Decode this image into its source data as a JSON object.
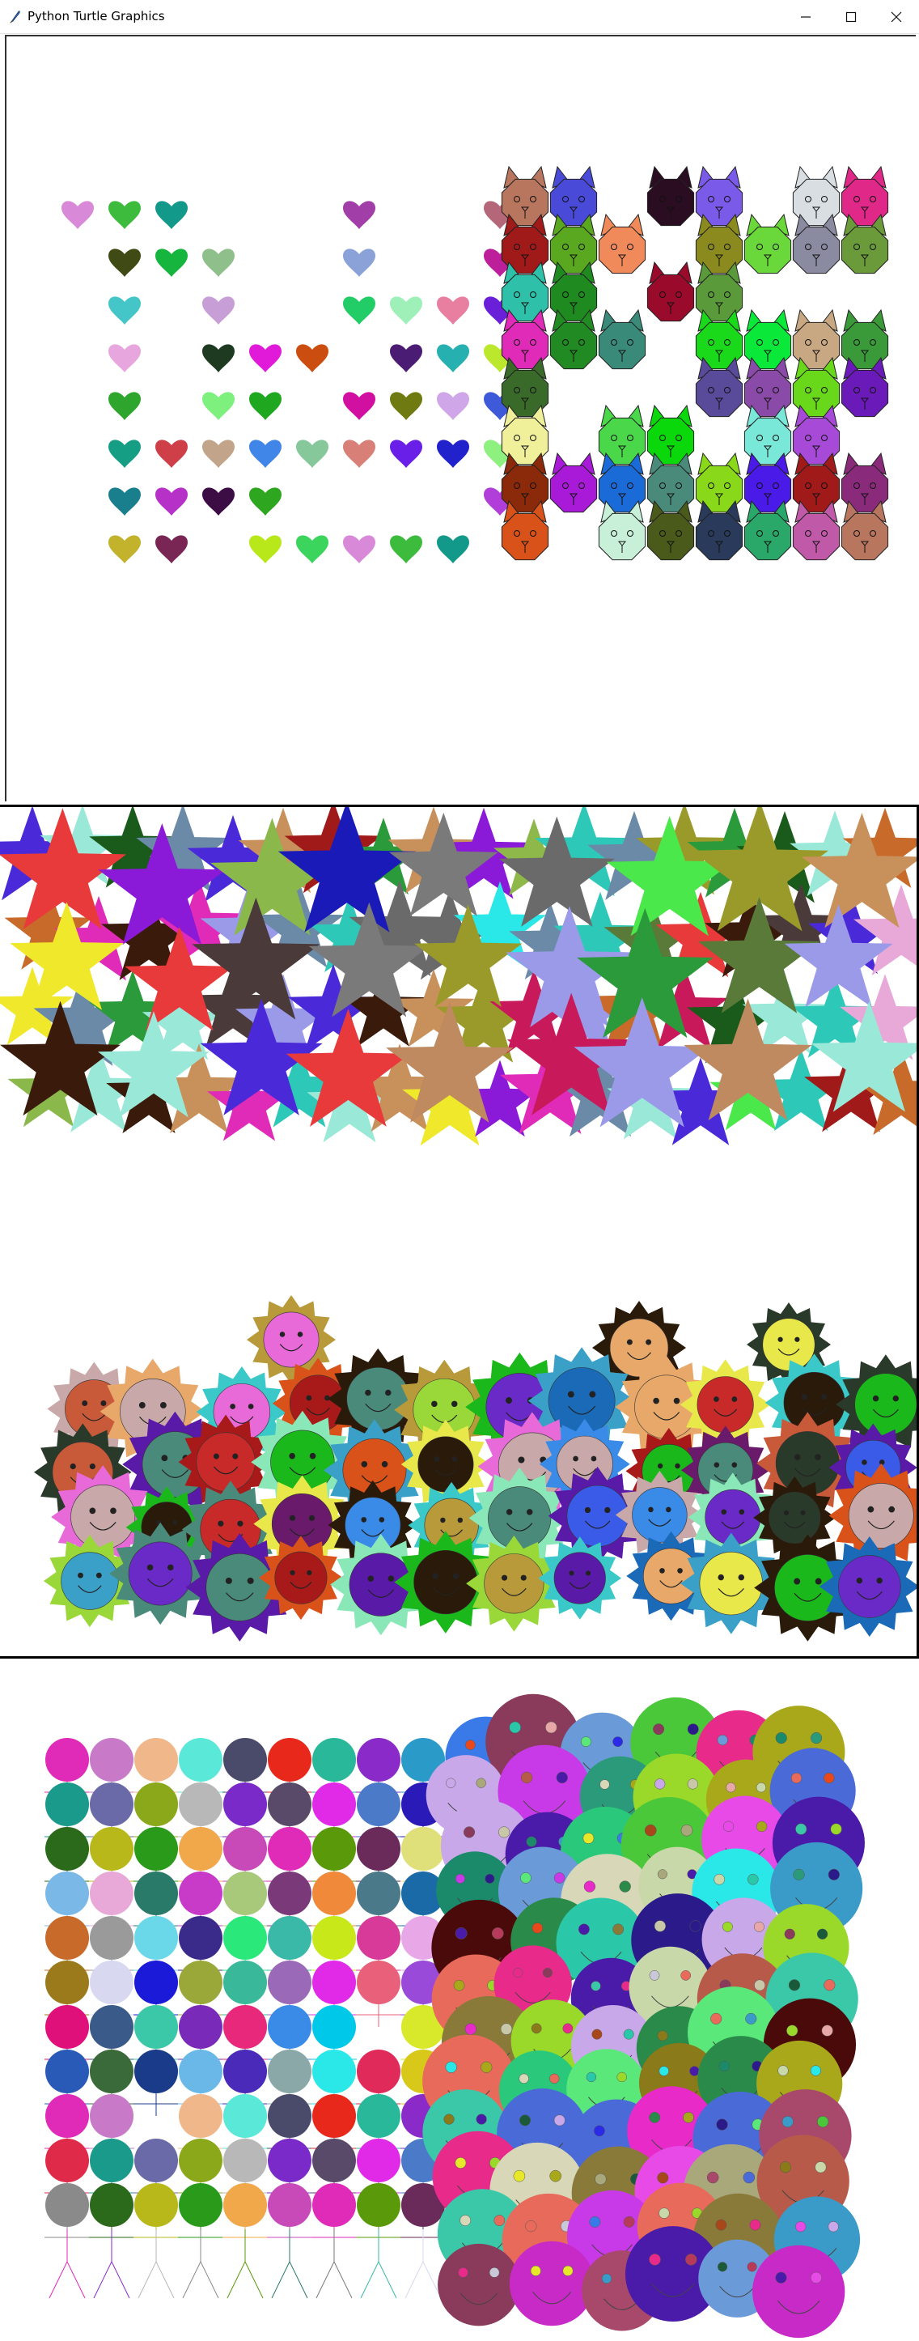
{
  "window": {
    "title": "Python Turtle Graphics",
    "controls": [
      "minimize",
      "maximize",
      "close"
    ]
  },
  "colors": {
    "outline": "#000000",
    "hearts": [
      "#d88ad8",
      "#3dbb3d",
      "#12998a",
      "#a23ea8",
      "#b5677a",
      "#3f4a14",
      "#16b53d",
      "#8fbf8a",
      "#8aa2d8",
      "#bd1f9a",
      "#44c6c8",
      "#c89ed6",
      "#22cc66",
      "#9ef0b8",
      "#e87fa0",
      "#6a1fd8",
      "#e8a6df",
      "#1e3a20",
      "#e01ad8",
      "#cc4d10",
      "#4a1c73",
      "#26b0b0",
      "#bbe82c",
      "#2ea62e",
      "#7ef07e",
      "#1fa81f",
      "#d10fa0",
      "#6f7a10",
      "#cfa6e8",
      "#3f5ad8",
      "#169e85",
      "#cf3f48",
      "#c2a48a",
      "#3f86e8",
      "#86c89a",
      "#d88078",
      "#6a1fe8",
      "#2222cc",
      "#8ef07e",
      "#1a7f8c",
      "#b531c8",
      "#3c0d44",
      "#2ea61f",
      "#b13ed8",
      "#c2b22c",
      "#7a2655",
      "#b8e81a",
      "#3bd45c"
    ],
    "cats": [
      "#b8765f",
      "#4a4ad8",
      "#2a0d20",
      "#7a5ae8",
      "#d8dee2",
      "#e02888",
      "#a01a1a",
      "#5aa81f",
      "#f08a5a",
      "#8a8a1f",
      "#6ad83a",
      "#8a8aa0",
      "#6a9a3a",
      "#2ec0a8",
      "#1f8a1f",
      "#9a0a2a",
      "#5a9a3a",
      "#e02ab8",
      "#228a22",
      "#3a8a7a",
      "#1ad81a",
      "#0ae83a",
      "#c8a882",
      "#3a9a3a",
      "#3a6a2a",
      "#5a4a9a",
      "#8a4aa8",
      "#6ad81a",
      "#6a1ab8",
      "#f0f09a",
      "#4ad84a",
      "#0ad80a",
      "#7ae8d8",
      "#a84ad8",
      "#8a2a0a",
      "#a81ad8",
      "#1a6ad8",
      "#4a8a7a",
      "#8ad81a",
      "#4a1ae8",
      "#a01a1a",
      "#8a2a7a",
      "#d8521a",
      "#c8f0d8",
      "#4a5a1a",
      "#2a3a5a",
      "#2aa86a",
      "#c05aa8"
    ],
    "stars": [
      "#bf8a5f",
      "#8fb84a",
      "#2ec8b8",
      "#a01a1a",
      "#3b3ba8",
      "#e02ab8",
      "#7a7a7a",
      "#e8a8d8",
      "#4a2ad8",
      "#2a9a3a",
      "#9a9ae8",
      "#8a1ad8",
      "#1a1ab8",
      "#2ae8e8",
      "#6a6a6a",
      "#c86a2a",
      "#5a7a3a",
      "#c8905a",
      "#3ae8a8",
      "#4a3a3a",
      "#8ab84a",
      "#e83a3a",
      "#9ae8d8",
      "#9a9a2a",
      "#1a5a1a",
      "#6a8aa8",
      "#c81a5a",
      "#3a1a0a",
      "#4ae84a",
      "#f0e82a"
    ],
    "suns": [
      "#6a2ac8",
      "#3a8ae8",
      "#c8a8a8",
      "#b89a3a",
      "#1ab81a",
      "#c82a2a",
      "#3a5ae8",
      "#8ae8b8",
      "#4a8a7a",
      "#d8521a",
      "#6a1a6a",
      "#3aa0c8",
      "#e8e84a",
      "#2a3a2a",
      "#c85a3a",
      "#9ad83a",
      "#e8a86a",
      "#5a1aa8",
      "#3ac8c8",
      "#a81a1a",
      "#2a1a0a",
      "#1a6ab8",
      "#e86ad8",
      "#6ae8e8"
    ],
    "small_circles": [
      "#e02ab8",
      "#c87ac8",
      "#f0b88a",
      "#5ae8d8",
      "#4a4a6a",
      "#e8281a",
      "#2ab89a",
      "#8a2ac8",
      "#2a9ac8",
      "#c8e87a",
      "#e02a4a",
      "#1a9a8a",
      "#6a6aa8",
      "#8aa81a",
      "#b8b8b8",
      "#7a2ac8",
      "#5a4a6a",
      "#e02ae8",
      "#4a7ac8",
      "#2a1ab8",
      "#c86a2a",
      "#8a8a8a",
      "#2a6a1a",
      "#b8b81a",
      "#2a9a1a",
      "#f0a84a",
      "#c84ab8",
      "#e02ab8",
      "#5a9a0a",
      "#6a2a5a",
      "#e0e07a",
      "#2a8ae8",
      "#4ae8e8",
      "#7ab8e8",
      "#e8a8d8",
      "#2a7a6a",
      "#c83ac8",
      "#a8c87a",
      "#7a3a7a",
      "#f08a3a",
      "#4a7a8a",
      "#1a6aa8",
      "#7a7a7a",
      "#e8481a",
      "#c86a2a",
      "#9a9a9a",
      "#6ad8e8",
      "#3a2a8a",
      "#2ae87a",
      "#3ab8a8",
      "#c8e81a",
      "#d83a9a",
      "#e8a8e8",
      "#3a0a4a",
      "#5a4a1a",
      "#9a7a1a",
      "#d8d8f0",
      "#1a1ad8",
      "#9aa83a",
      "#3ab89a",
      "#9a6ab8",
      "#e02ae8",
      "#e8607a",
      "#9a4ad8",
      "#2a4a6a",
      "#2a8ac8",
      "#e0107a",
      "#3a5a8a",
      "#3ac8a8",
      "#7a2ab8",
      "#e8287a",
      "#3a8ae8",
      "#00c8e8",
      "#d8e82a",
      "#c86a1a",
      "#e8281a",
      "#2a5ab8",
      "#3a6a3a",
      "#1a3a8a",
      "#6ab8e8",
      "#4a2ab8",
      "#8aa8a8",
      "#2ae8e8",
      "#e02a5a",
      "#d8c81a",
      "#4ad81a",
      "#4a4a2a"
    ],
    "big_circles": [
      "#2ac87a",
      "#1a5a3a",
      "#1a3a3a",
      "#a8a87a",
      "#c82ac8",
      "#2ac8a8",
      "#e82a8a",
      "#c8c8a8",
      "#e82ac8",
      "#2a8a4a",
      "#d8d8b8",
      "#4ac83a",
      "#2a2ae8",
      "#4a6ad8",
      "#e8a8a8",
      "#b83a5a",
      "#8a7a1a",
      "#e8e82a",
      "#c83ae8",
      "#9ad82a",
      "#2ae8e8",
      "#2a9a7a",
      "#e82a8a",
      "#8a7a3a",
      "#1a8a6a",
      "#3a7ae8",
      "#a8a81a",
      "#6a9ad8",
      "#e8481a",
      "#a8481a",
      "#4a1aa8",
      "#e84ae8",
      "#3a9ac8",
      "#c8d8a8",
      "#5ae87a",
      "#1a5a3a",
      "#8a3a5a",
      "#3ac8a8",
      "#e86a5a",
      "#4a0a0a",
      "#c8a8e8",
      "#2a1a8a",
      "#c8c8d8",
      "#a8486a",
      "#e8e82a",
      "#b85a4a"
    ]
  }
}
